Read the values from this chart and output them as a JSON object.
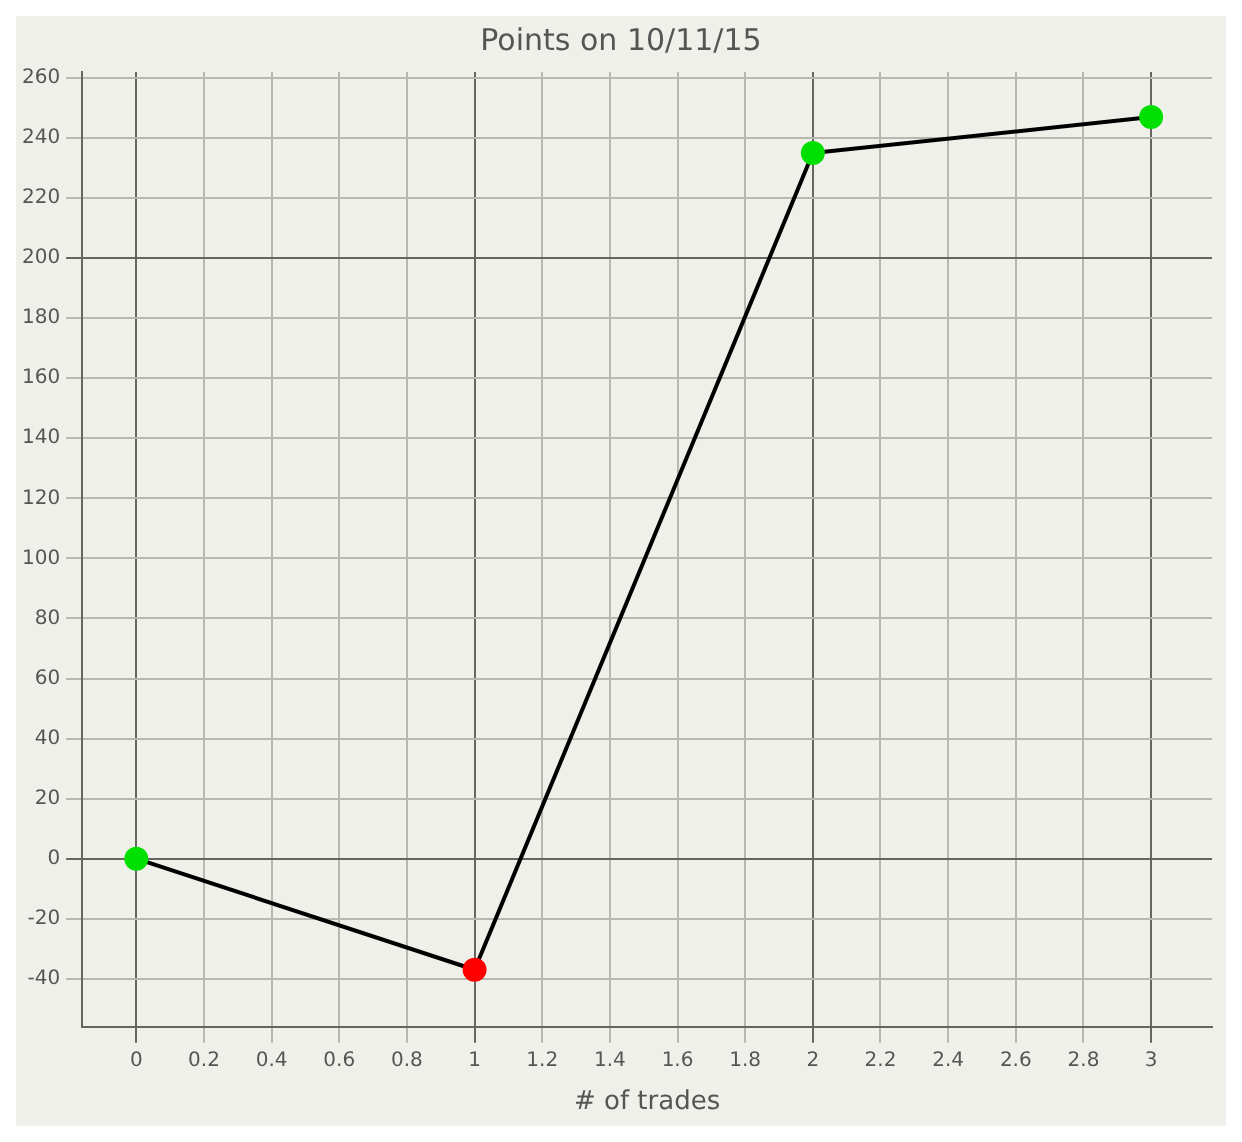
{
  "chart_data": {
    "type": "line",
    "title": "Points on 10/11/15",
    "xlabel": "# of trades",
    "x": [
      0,
      1,
      2,
      3
    ],
    "series": [
      {
        "color": "#000000",
        "colors": [
          "#00e000",
          "#ff0000",
          "#00e000",
          "#00e000"
        ],
        "values": [
          0,
          -37,
          235,
          247
        ]
      }
    ],
    "xlim": [
      -0.16,
      3.18
    ],
    "xticks": [
      0,
      0.2,
      0.4,
      0.6,
      0.8,
      1,
      1.2,
      1.4,
      1.6,
      1.8,
      2,
      2.2,
      2.4,
      2.6,
      2.8,
      3
    ],
    "ylim": [
      -56,
      262
    ],
    "yticks": [
      -40,
      -20,
      0,
      20,
      40,
      60,
      80,
      100,
      120,
      140,
      160,
      180,
      200,
      220,
      240,
      260
    ],
    "grid": true,
    "legend": false,
    "marker": "circle",
    "line_style": "solid"
  }
}
